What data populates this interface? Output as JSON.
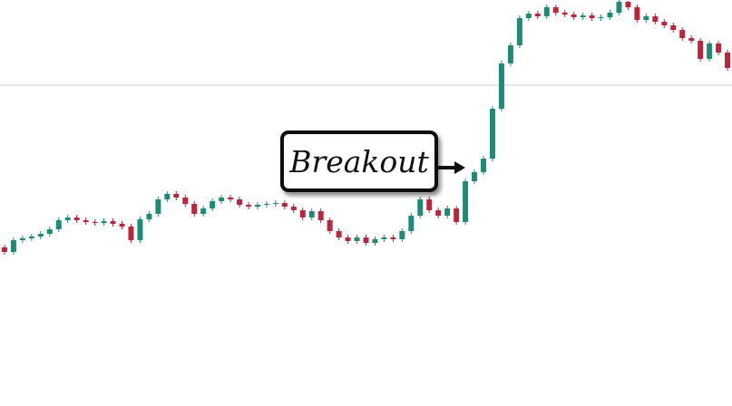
{
  "chart_data": {
    "type": "candlestick",
    "annotation": "Breakout",
    "ylim": [
      0,
      448
    ],
    "level": 354,
    "level_color": "#cfcfcf",
    "up_color": "#1f8a78",
    "down_color": "#b8283a",
    "open": [
      175,
      170,
      183,
      185,
      187,
      190,
      195,
      205,
      208,
      205,
      203,
      202,
      204,
      201,
      198,
      183,
      206,
      212,
      228,
      234,
      230,
      223,
      212,
      218,
      226,
      230,
      228,
      222,
      220,
      222,
      223,
      224,
      220,
      216,
      208,
      215,
      205,
      193,
      186,
      182,
      186,
      180,
      184,
      186,
      184,
      193,
      210,
      228,
      216,
      210,
      218,
      203,
      248,
      258,
      273,
      328,
      378,
      398,
      428,
      433,
      430,
      440,
      434,
      432,
      429,
      431,
      428,
      429,
      434,
      446,
      440,
      426,
      430,
      424,
      420,
      415,
      406,
      403,
      383,
      400,
      390
    ],
    "high": [
      178,
      186,
      188,
      190,
      193,
      198,
      208,
      211,
      211,
      208,
      206,
      207,
      207,
      204,
      201,
      209,
      215,
      231,
      237,
      237,
      233,
      226,
      221,
      229,
      233,
      233,
      231,
      225,
      225,
      226,
      227,
      227,
      223,
      219,
      218,
      218,
      208,
      196,
      189,
      189,
      189,
      187,
      189,
      189,
      196,
      213,
      231,
      231,
      219,
      221,
      221,
      251,
      261,
      276,
      331,
      381,
      401,
      431,
      436,
      436,
      443,
      443,
      437,
      435,
      434,
      434,
      432,
      437,
      448,
      447,
      443,
      433,
      433,
      427,
      423,
      418,
      409,
      406,
      403,
      403,
      393
    ],
    "low": [
      167,
      167,
      180,
      182,
      184,
      187,
      192,
      202,
      202,
      200,
      199,
      199,
      198,
      195,
      180,
      180,
      203,
      209,
      225,
      227,
      220,
      209,
      209,
      215,
      223,
      225,
      219,
      217,
      217,
      219,
      220,
      217,
      213,
      205,
      205,
      202,
      190,
      183,
      179,
      179,
      177,
      177,
      181,
      181,
      181,
      190,
      207,
      213,
      207,
      207,
      200,
      200,
      245,
      255,
      270,
      325,
      375,
      395,
      425,
      427,
      427,
      431,
      429,
      426,
      426,
      425,
      425,
      426,
      431,
      437,
      423,
      423,
      421,
      417,
      412,
      403,
      400,
      380,
      380,
      387,
      370
    ],
    "close": [
      170,
      183,
      185,
      187,
      190,
      195,
      205,
      208,
      205,
      203,
      202,
      204,
      201,
      198,
      183,
      206,
      212,
      228,
      234,
      230,
      223,
      212,
      218,
      226,
      230,
      228,
      222,
      220,
      222,
      223,
      224,
      220,
      216,
      208,
      215,
      205,
      193,
      186,
      182,
      186,
      180,
      184,
      186,
      184,
      193,
      210,
      228,
      216,
      210,
      218,
      203,
      248,
      258,
      273,
      328,
      378,
      398,
      428,
      433,
      430,
      440,
      434,
      432,
      429,
      431,
      428,
      429,
      434,
      446,
      440,
      426,
      430,
      424,
      420,
      415,
      406,
      403,
      383,
      400,
      390,
      373
    ]
  }
}
